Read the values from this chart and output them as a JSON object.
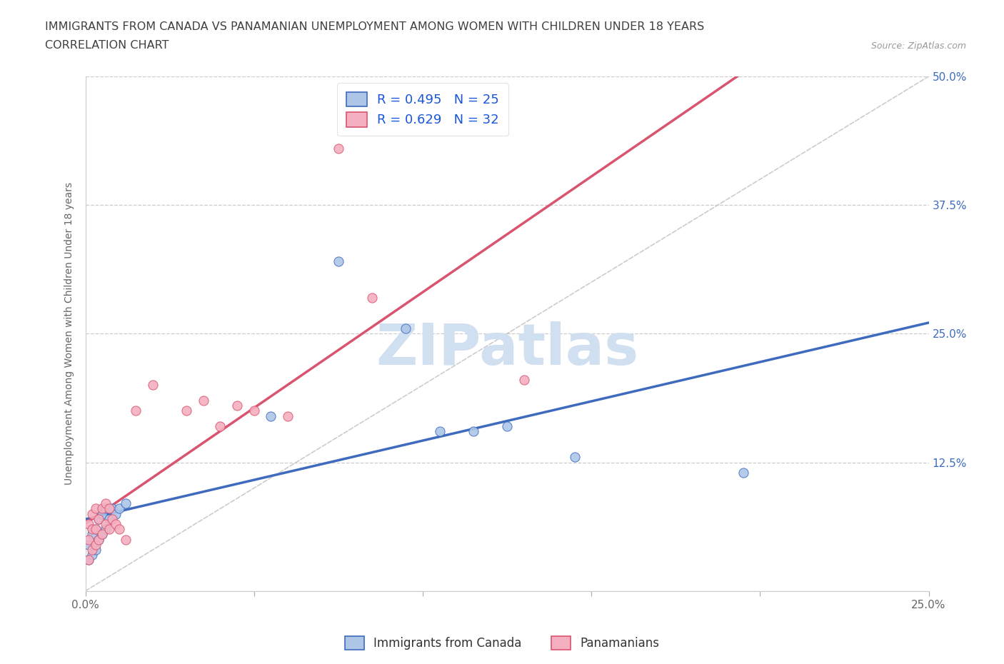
{
  "title_line1": "IMMIGRANTS FROM CANADA VS PANAMANIAN UNEMPLOYMENT AMONG WOMEN WITH CHILDREN UNDER 18 YEARS",
  "title_line2": "CORRELATION CHART",
  "source_text": "Source: ZipAtlas.com",
  "ylabel": "Unemployment Among Women with Children Under 18 years",
  "xlim": [
    0.0,
    0.25
  ],
  "ylim": [
    0.0,
    0.5
  ],
  "legend_r1": "R = 0.495   N = 25",
  "legend_r2": "R = 0.629   N = 32",
  "canada_x": [
    0.001,
    0.001,
    0.002,
    0.002,
    0.003,
    0.003,
    0.004,
    0.004,
    0.005,
    0.005,
    0.006,
    0.006,
    0.007,
    0.008,
    0.009,
    0.01,
    0.012,
    0.055,
    0.075,
    0.095,
    0.105,
    0.115,
    0.125,
    0.145,
    0.195
  ],
  "canada_y": [
    0.03,
    0.045,
    0.035,
    0.055,
    0.04,
    0.06,
    0.05,
    0.07,
    0.055,
    0.075,
    0.06,
    0.08,
    0.07,
    0.08,
    0.075,
    0.08,
    0.085,
    0.17,
    0.32,
    0.255,
    0.155,
    0.155,
    0.16,
    0.13,
    0.115
  ],
  "panama_x": [
    0.001,
    0.001,
    0.001,
    0.002,
    0.002,
    0.002,
    0.003,
    0.003,
    0.003,
    0.004,
    0.004,
    0.005,
    0.005,
    0.006,
    0.006,
    0.007,
    0.007,
    0.008,
    0.009,
    0.01,
    0.012,
    0.015,
    0.02,
    0.03,
    0.035,
    0.04,
    0.045,
    0.05,
    0.06,
    0.075,
    0.085,
    0.13
  ],
  "panama_y": [
    0.03,
    0.05,
    0.065,
    0.04,
    0.06,
    0.075,
    0.045,
    0.06,
    0.08,
    0.05,
    0.07,
    0.055,
    0.08,
    0.065,
    0.085,
    0.06,
    0.08,
    0.07,
    0.065,
    0.06,
    0.05,
    0.175,
    0.2,
    0.175,
    0.185,
    0.16,
    0.18,
    0.175,
    0.17,
    0.43,
    0.285,
    0.205
  ],
  "canada_scatter_color": "#adc6e8",
  "panama_scatter_color": "#f4afc0",
  "canada_line_color": "#3f6bbf",
  "panama_line_color": "#d9546e",
  "ref_line_color": "#c0c0c0",
  "background_color": "#ffffff",
  "watermark_text": "ZIPatlas",
  "watermark_color": "#d0e0f0",
  "title_color": "#404040",
  "source_color": "#999999",
  "right_tick_color": "#3f6bbf",
  "left_tick_color": "#777777"
}
